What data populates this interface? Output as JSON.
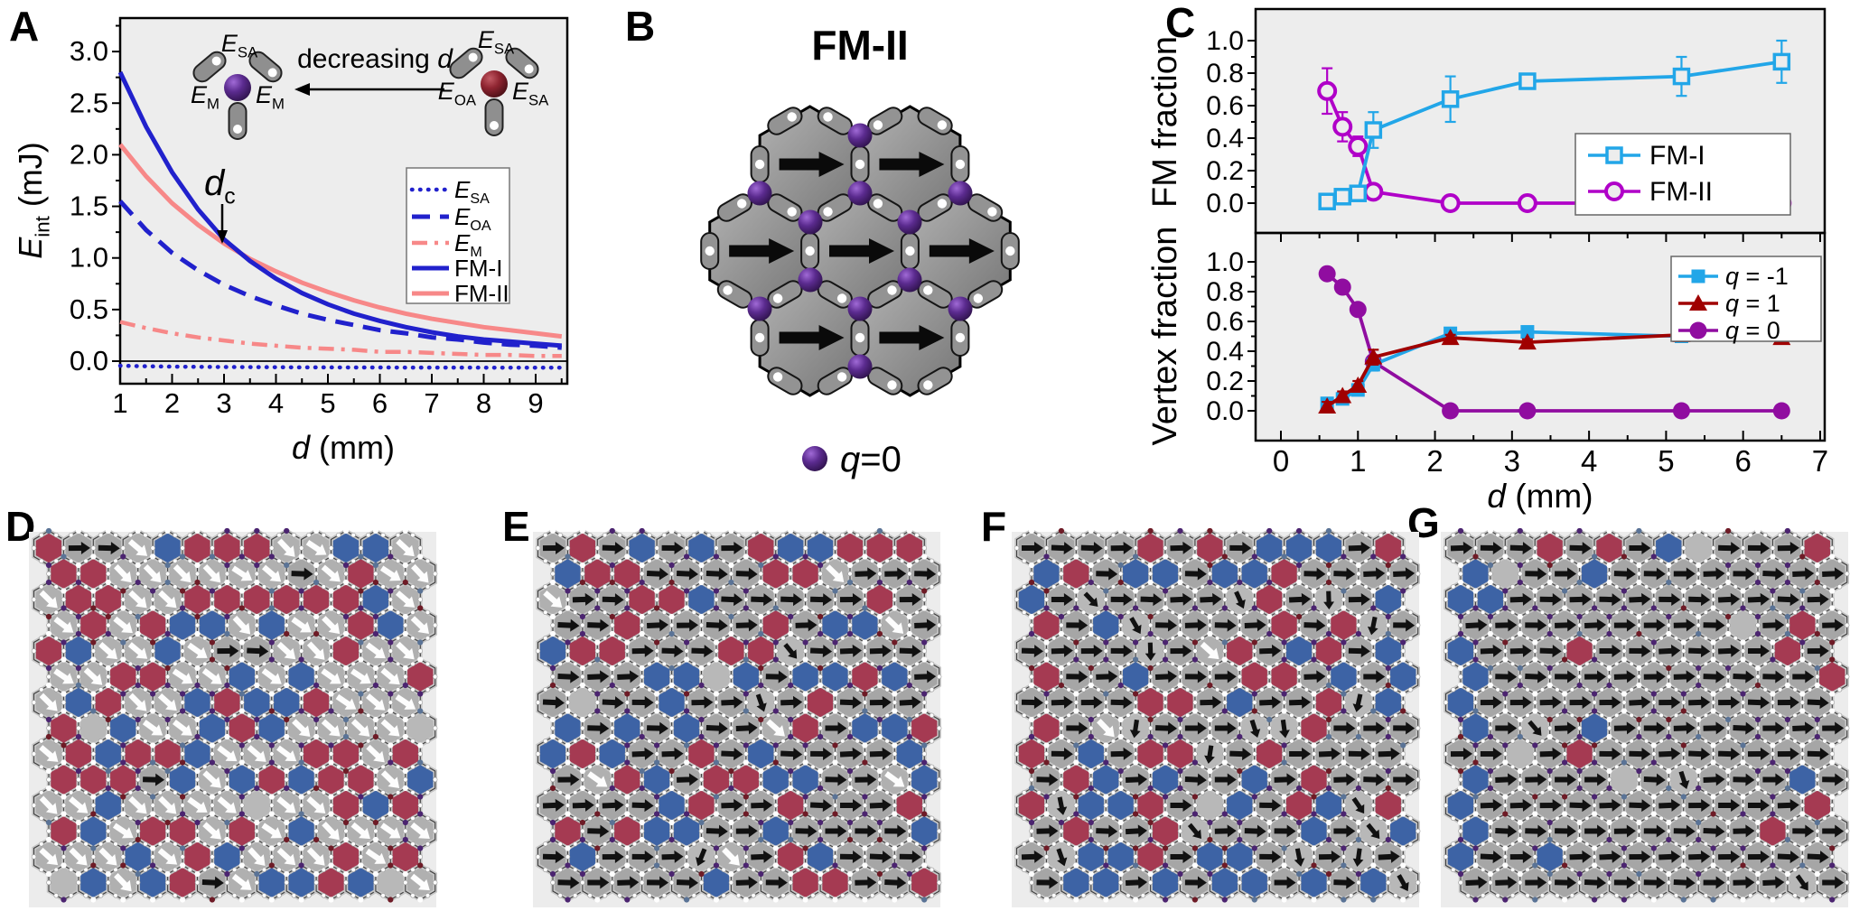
{
  "colors": {
    "page_bg": "#ffffff",
    "plot_bg": "#ededed",
    "blue": "#2121cc",
    "salmon": "#f78888",
    "cyan": "#22a6e8",
    "magenta": "#b000c8",
    "dark_red": "#a00000",
    "purple": "#900da0",
    "hex_red": "#a53a52",
    "hex_blue": "#3d63a5",
    "sphere_purple": "#5b2b8f",
    "sphere_dark_red": "#8e2430"
  },
  "lattice_style": {
    "bg": "#ececec",
    "ring": "#c6c6c6",
    "outline": "#3f3f3f",
    "gray_arrow": "#a6a6a6",
    "gray_diag": "#b0b0b0",
    "gray_plain": "#b8b8b8",
    "edge_dot": "#ffffff",
    "vertex_dot_colors": [
      "#ffffff",
      "#4b2470",
      "#6e1b26",
      "#5a7396"
    ]
  },
  "panels": {
    "a": {
      "label": "A"
    },
    "b": {
      "label": "B",
      "title": "FM-II",
      "legend_parts": [
        {
          "t": "q",
          "i": 1
        },
        {
          "t": "=0"
        }
      ]
    },
    "c": {
      "label": "C"
    },
    "d": {
      "label": "D",
      "lattice": {
        "seed": 7,
        "cols": 13,
        "rows": 14,
        "fractions": {
          "red": 0.26,
          "blue": 0.26,
          "black_right": 0.04,
          "white_diag": 0.42,
          "black_diag": 0.0
        }
      }
    },
    "e": {
      "label": "E",
      "lattice": {
        "seed": 13,
        "cols": 13,
        "rows": 14,
        "fractions": {
          "red": 0.22,
          "blue": 0.22,
          "black_right": 0.47,
          "white_diag": 0.05,
          "black_diag": 0.02
        }
      }
    },
    "f": {
      "label": "F",
      "lattice": {
        "seed": 21,
        "cols": 13,
        "rows": 14,
        "fractions": {
          "red": 0.21,
          "blue": 0.19,
          "black_right": 0.45,
          "white_diag": 0.02,
          "black_diag": 0.11
        }
      }
    },
    "g": {
      "label": "G",
      "lattice": {
        "seed": 5,
        "cols": 13,
        "rows": 14,
        "left_edge_blue": true,
        "fractions": {
          "red": 0.04,
          "blue": 0.05,
          "black_right": 0.87,
          "white_diag": 0.0,
          "black_diag": 0.02
        }
      }
    }
  },
  "chart_data": [
    {
      "id": "A",
      "type": "line",
      "xlabel_parts": [
        {
          "t": "d",
          "i": 1
        },
        {
          "t": " (mm)"
        }
      ],
      "ylabel_parts": [
        {
          "t": "E",
          "i": 1
        },
        {
          "t": "int",
          "sub": 1
        },
        {
          "t": " (mJ)"
        }
      ],
      "xlim": [
        1,
        9.5
      ],
      "ylim": [
        -0.22,
        3.32
      ],
      "grid": false,
      "legend_position": "right-middle",
      "xticks": [
        1,
        2,
        3,
        4,
        5,
        6,
        7,
        8,
        9
      ],
      "ytick_labels": [
        "0.0",
        "0.5",
        "1.0",
        "1.5",
        "2.0",
        "2.5",
        "3.0"
      ],
      "x": [
        1,
        1.5,
        2,
        2.5,
        3,
        3.5,
        4,
        4.5,
        5,
        5.5,
        6,
        6.5,
        7,
        7.5,
        8,
        8.5,
        9,
        9.5
      ],
      "series": [
        {
          "name": "E_SA",
          "label_parts": [
            {
              "t": "E",
              "i": 1
            },
            {
              "t": "SA",
              "sub": 1
            }
          ],
          "color": "#2121cc",
          "style": "dotted",
          "width": 4.5,
          "values": [
            -0.045,
            -0.05,
            -0.053,
            -0.055,
            -0.057,
            -0.058,
            -0.059,
            -0.06,
            -0.06,
            -0.061,
            -0.061,
            -0.062,
            -0.062,
            -0.062,
            -0.063,
            -0.063,
            -0.063,
            -0.063
          ]
        },
        {
          "name": "E_OA",
          "label_parts": [
            {
              "t": "E",
              "i": 1
            },
            {
              "t": "OA",
              "sub": 1
            }
          ],
          "color": "#2121cc",
          "style": "dashed",
          "width": 5,
          "values": [
            1.55,
            1.27,
            1.05,
            0.88,
            0.74,
            0.63,
            0.54,
            0.46,
            0.4,
            0.35,
            0.3,
            0.27,
            0.23,
            0.21,
            0.18,
            0.16,
            0.15,
            0.13
          ]
        },
        {
          "name": "E_M",
          "label_parts": [
            {
              "t": "E",
              "i": 1
            },
            {
              "t": "M",
              "sub": 1
            }
          ],
          "color": "#f78888",
          "style": "dashdot",
          "width": 4.5,
          "values": [
            0.38,
            0.32,
            0.27,
            0.23,
            0.2,
            0.17,
            0.15,
            0.13,
            0.12,
            0.11,
            0.09,
            0.09,
            0.08,
            0.07,
            0.06,
            0.06,
            0.05,
            0.05
          ]
        },
        {
          "name": "FM-II",
          "label_parts": [
            {
              "t": "FM-II"
            }
          ],
          "color": "#f78888",
          "style": "solid",
          "width": 5,
          "values": [
            2.1,
            1.79,
            1.53,
            1.32,
            1.14,
            0.99,
            0.87,
            0.76,
            0.67,
            0.59,
            0.52,
            0.46,
            0.41,
            0.37,
            0.33,
            0.3,
            0.27,
            0.24
          ]
        },
        {
          "name": "FM-I",
          "label_parts": [
            {
              "t": "FM-I"
            }
          ],
          "color": "#2121cc",
          "style": "solid",
          "width": 5,
          "values": [
            2.8,
            2.27,
            1.83,
            1.47,
            1.18,
            0.97,
            0.8,
            0.66,
            0.55,
            0.46,
            0.39,
            0.33,
            0.28,
            0.24,
            0.21,
            0.19,
            0.17,
            0.15
          ]
        }
      ],
      "legend_order": [
        "E_SA",
        "E_OA",
        "E_M",
        "FM-I",
        "FM-II"
      ],
      "annotation": {
        "label_parts": [
          {
            "t": "d",
            "i": 1
          },
          {
            "t": "c",
            "sub": 1
          }
        ],
        "x": 2.95,
        "y": 1.17
      },
      "inset": {
        "arrow_label_parts": [
          {
            "t": "decreasing "
          },
          {
            "t": "d",
            "i": 1
          }
        ],
        "left": {
          "sphere": "purple",
          "top": [
            {
              "t": "E",
              "i": 1
            },
            {
              "t": "SA",
              "sub": 1
            }
          ],
          "left": [
            {
              "t": "E",
              "i": 1
            },
            {
              "t": "M",
              "sub": 1
            }
          ],
          "right": [
            {
              "t": "E",
              "i": 1
            },
            {
              "t": "M",
              "sub": 1
            }
          ]
        },
        "right": {
          "sphere": "dark_red",
          "top": [
            {
              "t": "E",
              "i": 1
            },
            {
              "t": "SA",
              "sub": 1
            }
          ],
          "left": [
            {
              "t": "E",
              "i": 1
            },
            {
              "t": "OA",
              "sub": 1
            }
          ],
          "right": [
            {
              "t": "E",
              "i": 1
            },
            {
              "t": "SA",
              "sub": 1
            }
          ]
        }
      }
    },
    {
      "id": "C_top",
      "type": "scatter-line",
      "ylabel": "FM fraction",
      "xlim": [
        0,
        7
      ],
      "ylim": [
        0,
        1
      ],
      "legend_position": "right-middle",
      "ytick_labels": [
        "0.0",
        "0.2",
        "0.4",
        "0.6",
        "0.8",
        "1.0"
      ],
      "x": [
        0.6,
        0.8,
        1.0,
        1.2,
        2.2,
        3.2,
        5.2,
        6.5
      ],
      "series": [
        {
          "name": "FM-II",
          "label_parts": [
            {
              "t": "FM-II"
            }
          ],
          "color": "#b000c8",
          "marker": "circle-open",
          "values": [
            0.69,
            0.47,
            0.35,
            0.07,
            0.0,
            0.0,
            0.0,
            0.0
          ],
          "errors": [
            0.14,
            0.09,
            0.06,
            0.03,
            0.0,
            0.0,
            0.0,
            0.0
          ]
        },
        {
          "name": "FM-I",
          "label_parts": [
            {
              "t": "FM-I"
            }
          ],
          "color": "#22a6e8",
          "marker": "square-open",
          "values": [
            0.01,
            0.04,
            0.06,
            0.45,
            0.64,
            0.75,
            0.78,
            0.87
          ],
          "errors": [
            0.02,
            0.02,
            0.03,
            0.11,
            0.14,
            0.03,
            0.12,
            0.13
          ]
        }
      ],
      "legend_order": [
        "FM-I",
        "FM-II"
      ]
    },
    {
      "id": "C_bottom",
      "type": "scatter-line",
      "ylabel": "Vertex fraction",
      "xlabel_parts": [
        {
          "t": "d",
          "i": 1
        },
        {
          "t": " (mm)"
        }
      ],
      "xlim": [
        0,
        7
      ],
      "ylim": [
        0,
        1
      ],
      "legend_position": "top-right",
      "xticks": [
        0,
        1,
        2,
        3,
        4,
        5,
        6,
        7
      ],
      "ytick_labels": [
        "0.0",
        "0.2",
        "0.4",
        "0.6",
        "0.8",
        "1.0"
      ],
      "x": [
        0.6,
        0.8,
        1.0,
        1.2,
        2.2,
        3.2,
        5.2,
        6.5
      ],
      "series": [
        {
          "name": "q0",
          "label_parts": [
            {
              "t": "q",
              "i": 1
            },
            {
              "t": " = 0"
            }
          ],
          "color": "#900da0",
          "marker": "circle-fill",
          "values": [
            0.92,
            0.83,
            0.68,
            0.33,
            0.0,
            0.0,
            0.0,
            0.0
          ],
          "errors": [
            0.03,
            0.03,
            0.03,
            0.04,
            0.0,
            0.0,
            0.0,
            0.0
          ]
        },
        {
          "name": "q-1",
          "label_parts": [
            {
              "t": "q",
              "i": 1
            },
            {
              "t": " = -1"
            }
          ],
          "color": "#22a6e8",
          "marker": "square-fill",
          "values": [
            0.05,
            0.08,
            0.14,
            0.31,
            0.52,
            0.53,
            0.5,
            0.52
          ],
          "errors": [
            0.02,
            0.02,
            0.02,
            0.04,
            0.02,
            0.02,
            0.03,
            0.02
          ]
        },
        {
          "name": "q1",
          "label_parts": [
            {
              "t": "q",
              "i": 1
            },
            {
              "t": " = 1"
            }
          ],
          "color": "#a00000",
          "marker": "triangle-fill",
          "values": [
            0.03,
            0.1,
            0.17,
            0.36,
            0.49,
            0.46,
            0.51,
            0.49
          ],
          "errors": [
            0.03,
            0.03,
            0.03,
            0.05,
            0.02,
            0.02,
            0.03,
            0.03
          ]
        }
      ],
      "legend_order": [
        "q-1",
        "q1",
        "q0"
      ]
    }
  ]
}
